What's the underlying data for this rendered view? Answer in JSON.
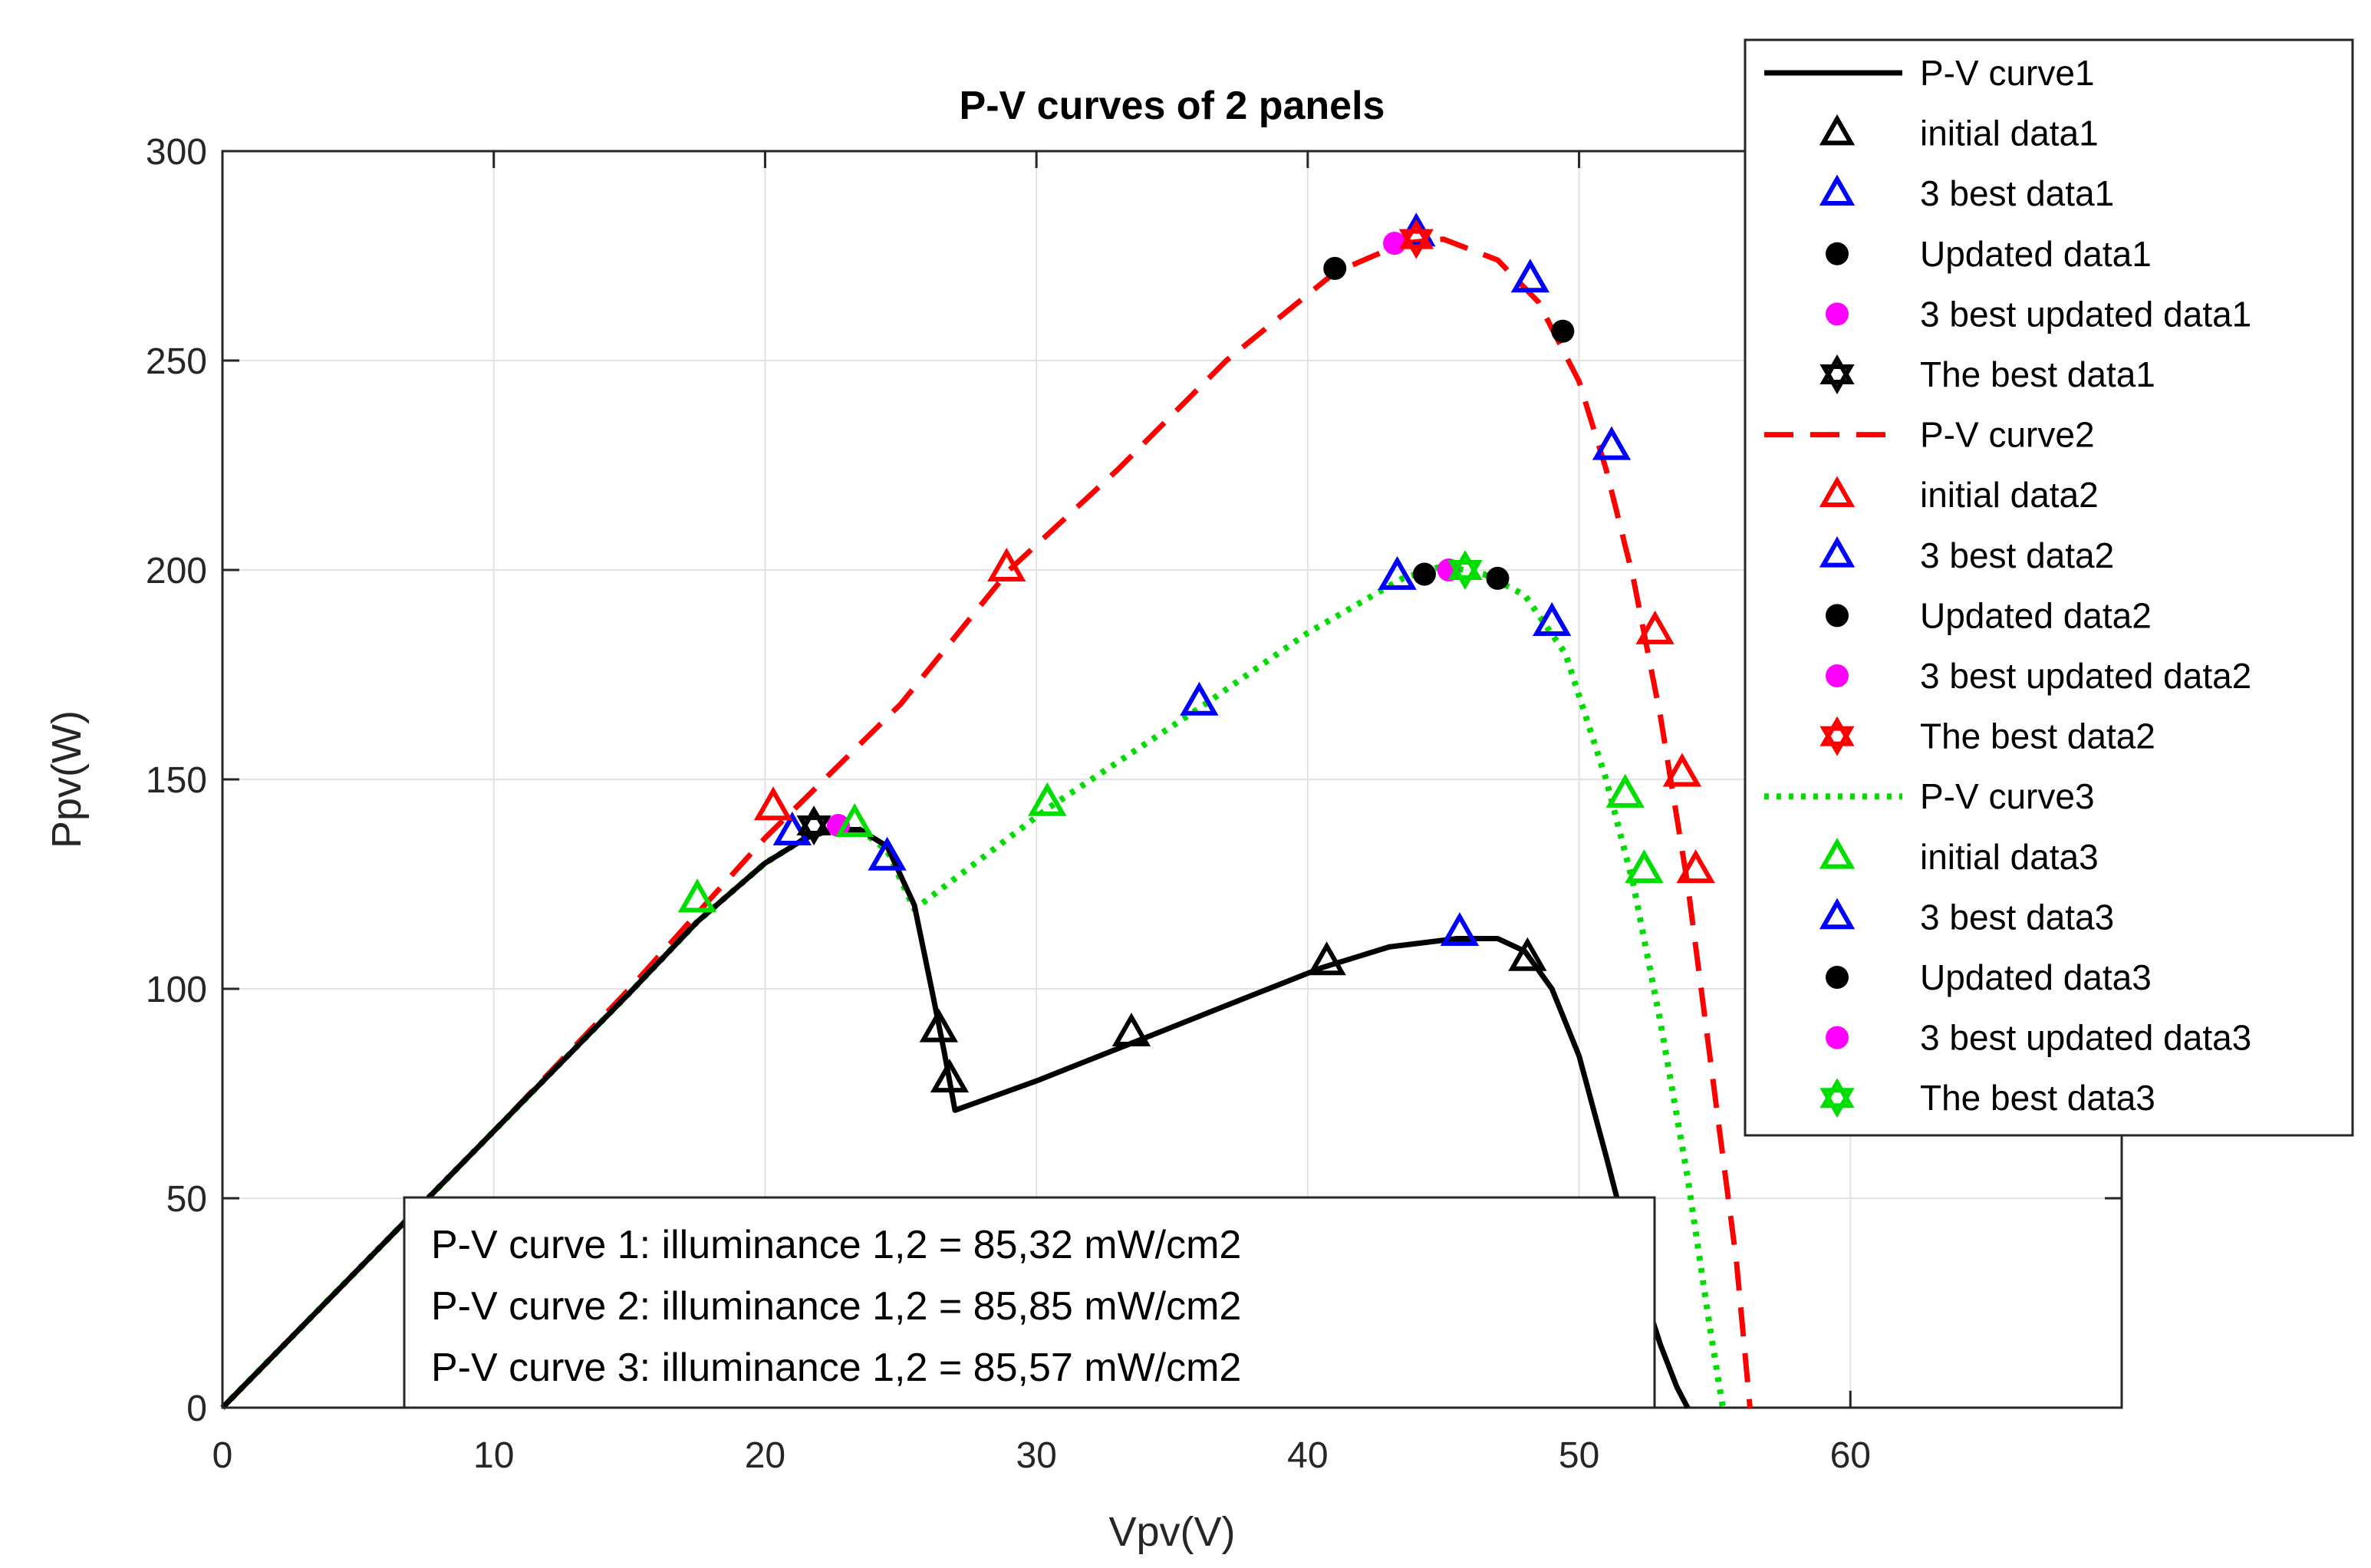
{
  "chart_data": {
    "type": "line",
    "title": "P-V curves of 2 panels",
    "xlabel": "Vpv(V)",
    "ylabel": "Ppv(W)",
    "xlim": [
      0,
      70
    ],
    "ylim": [
      0,
      300
    ],
    "xticks": [
      0,
      10,
      20,
      30,
      40,
      50,
      60
    ],
    "yticks": [
      0,
      50,
      100,
      150,
      200,
      250,
      300
    ],
    "grid": true,
    "legend_position": "top-right",
    "colors": {
      "black": "#000000",
      "red": "#ff0000",
      "blue": "#0000ff",
      "green": "#00dd00",
      "magenta": "#ff00ff"
    },
    "curves": [
      {
        "name": "P-V curve1",
        "style": "solid",
        "color": "#000000",
        "x": [
          0,
          5,
          10,
          15,
          17.5,
          20,
          21.5,
          22.5,
          23.5,
          24.5,
          25.5,
          26.2,
          26.6,
          27,
          30,
          33.5,
          37,
          40.5,
          43,
          45.5,
          47,
          48,
          49,
          50,
          51,
          52,
          53,
          53.6,
          54
        ],
        "y": [
          0,
          33,
          66,
          99,
          116,
          130,
          136,
          138,
          138,
          134,
          120,
          98,
          85,
          71,
          78,
          87,
          96,
          105,
          110,
          112,
          112,
          109,
          100,
          84,
          60,
          35,
          15,
          5,
          0
        ]
      },
      {
        "name": "P-V curve2",
        "style": "dashed",
        "color": "#ff0000",
        "x": [
          0,
          5,
          10,
          15,
          20,
          25,
          29,
          33,
          37,
          41,
          43.5,
          45,
          47,
          48.5,
          50,
          51,
          52,
          53,
          54,
          55,
          55.8,
          56.3
        ],
        "y": [
          0,
          33,
          66,
          100,
          136,
          168,
          200,
          224,
          250,
          271,
          278,
          279,
          274,
          264,
          245,
          224,
          198,
          165,
          125,
          75,
          35,
          0
        ]
      },
      {
        "name": "P-V curve3",
        "style": "dotted",
        "color": "#00dd00",
        "x": [
          0,
          5,
          10,
          15,
          17.5,
          20,
          21.5,
          22.5,
          23.5,
          24.5,
          25.5,
          30.4,
          36,
          40,
          43.5,
          45,
          46.5,
          48,
          49.5,
          51,
          52,
          53,
          54,
          54.8,
          55.3
        ],
        "y": [
          0,
          33,
          66,
          99,
          116,
          130,
          136,
          138,
          138,
          133,
          119,
          143,
          167,
          185,
          198,
          201,
          199,
          194,
          180,
          150,
          125,
          92,
          55,
          20,
          0
        ]
      }
    ],
    "markers": {
      "initial_data1": {
        "label": "initial data1",
        "color": "#000000",
        "x": [
          26.4,
          26.8,
          33.5,
          40.7,
          48.1
        ],
        "y": [
          90,
          78,
          89,
          106,
          107
        ]
      },
      "3_best_data1": {
        "label": "3 best data1",
        "color": "#0000ff",
        "x": [
          21,
          24.5,
          45.6
        ],
        "y": [
          137,
          131,
          113
        ]
      },
      "updated_data1": {
        "label": "Updated data1",
        "color": "#000000",
        "x": [],
        "y": []
      },
      "3_best_updated_data1": {
        "label": "3 best updated data1",
        "color": "#ff00ff",
        "x": [
          22.7
        ],
        "y": [
          139
        ]
      },
      "the_best_data1": {
        "label": "The best data1",
        "color": "#000000",
        "x": [
          21.8
        ],
        "y": [
          139
        ]
      },
      "initial_data2": {
        "label": "initial data2",
        "color": "#ff0000",
        "x": [
          20.3,
          28.9,
          52.8,
          53.8,
          54.3
        ],
        "y": [
          143,
          200,
          185,
          151,
          128
        ]
      },
      "3_best_data2": {
        "label": "3 best data2",
        "color": "#0000ff",
        "x": [
          44,
          48.2,
          51.2
        ],
        "y": [
          280,
          269,
          229
        ]
      },
      "updated_data2": {
        "label": "Updated data2",
        "color": "#000000",
        "x": [
          41,
          49.4
        ],
        "y": [
          272,
          257
        ]
      },
      "3_best_updated_data2": {
        "label": "3 best updated data2",
        "color": "#ff00ff",
        "x": [
          43.2
        ],
        "y": [
          278
        ]
      },
      "the_best_data2": {
        "label": "The best data2",
        "color": "#ff0000",
        "x": [
          44
        ],
        "y": [
          279
        ]
      },
      "initial_data3": {
        "label": "initial data3",
        "color": "#00dd00",
        "x": [
          17.5,
          23.3,
          30.4,
          51.7,
          52.4
        ],
        "y": [
          121,
          139,
          144,
          146,
          128
        ]
      },
      "3_best_data3": {
        "label": "3 best data3",
        "color": "#0000ff",
        "x": [
          36,
          43.3,
          49
        ],
        "y": [
          168,
          198,
          187
        ]
      },
      "updated_data3": {
        "label": "Updated data3",
        "color": "#000000",
        "x": [
          44.3,
          47
        ],
        "y": [
          199,
          198
        ]
      },
      "3_best_updated_data3": {
        "label": "3 best updated data3",
        "color": "#ff00ff",
        "x": [
          45.2
        ],
        "y": [
          200
        ]
      },
      "the_best_data3": {
        "label": "The best data3",
        "color": "#00dd00",
        "x": [
          45.8
        ],
        "y": [
          200
        ]
      }
    },
    "legend": [
      {
        "label": "P-V curve1",
        "kind": "line",
        "style": "solid",
        "color": "#000000"
      },
      {
        "label": "initial data1",
        "kind": "triangle",
        "color": "#000000"
      },
      {
        "label": "3 best data1",
        "kind": "triangle",
        "color": "#0000ff"
      },
      {
        "label": "Updated data1",
        "kind": "dot",
        "color": "#000000"
      },
      {
        "label": "3 best updated data1",
        "kind": "dot",
        "color": "#ff00ff"
      },
      {
        "label": "The best data1",
        "kind": "hexagram",
        "color": "#000000"
      },
      {
        "label": "P-V curve2",
        "kind": "line",
        "style": "dashed",
        "color": "#ff0000"
      },
      {
        "label": "initial data2",
        "kind": "triangle",
        "color": "#ff0000"
      },
      {
        "label": "3 best data2",
        "kind": "triangle",
        "color": "#0000ff"
      },
      {
        "label": "Updated data2",
        "kind": "dot",
        "color": "#000000"
      },
      {
        "label": "3 best updated data2",
        "kind": "dot",
        "color": "#ff00ff"
      },
      {
        "label": "The best data2",
        "kind": "hexagram",
        "color": "#ff0000"
      },
      {
        "label": "P-V curve3",
        "kind": "line",
        "style": "dotted",
        "color": "#00dd00"
      },
      {
        "label": "initial data3",
        "kind": "triangle",
        "color": "#00dd00"
      },
      {
        "label": "3 best data3",
        "kind": "triangle",
        "color": "#0000ff"
      },
      {
        "label": "Updated data3",
        "kind": "dot",
        "color": "#000000"
      },
      {
        "label": "3 best updated data3",
        "kind": "dot",
        "color": "#ff00ff"
      },
      {
        "label": "The best data3",
        "kind": "hexagram",
        "color": "#00dd00"
      }
    ],
    "annotations": [
      "P-V curve 1: illuminance 1,2 = 85,32 mW/cm2",
      "P-V curve 2: illuminance 1,2 = 85,85 mW/cm2",
      "P-V curve 3: illuminance 1,2 = 85,57 mW/cm2"
    ]
  }
}
